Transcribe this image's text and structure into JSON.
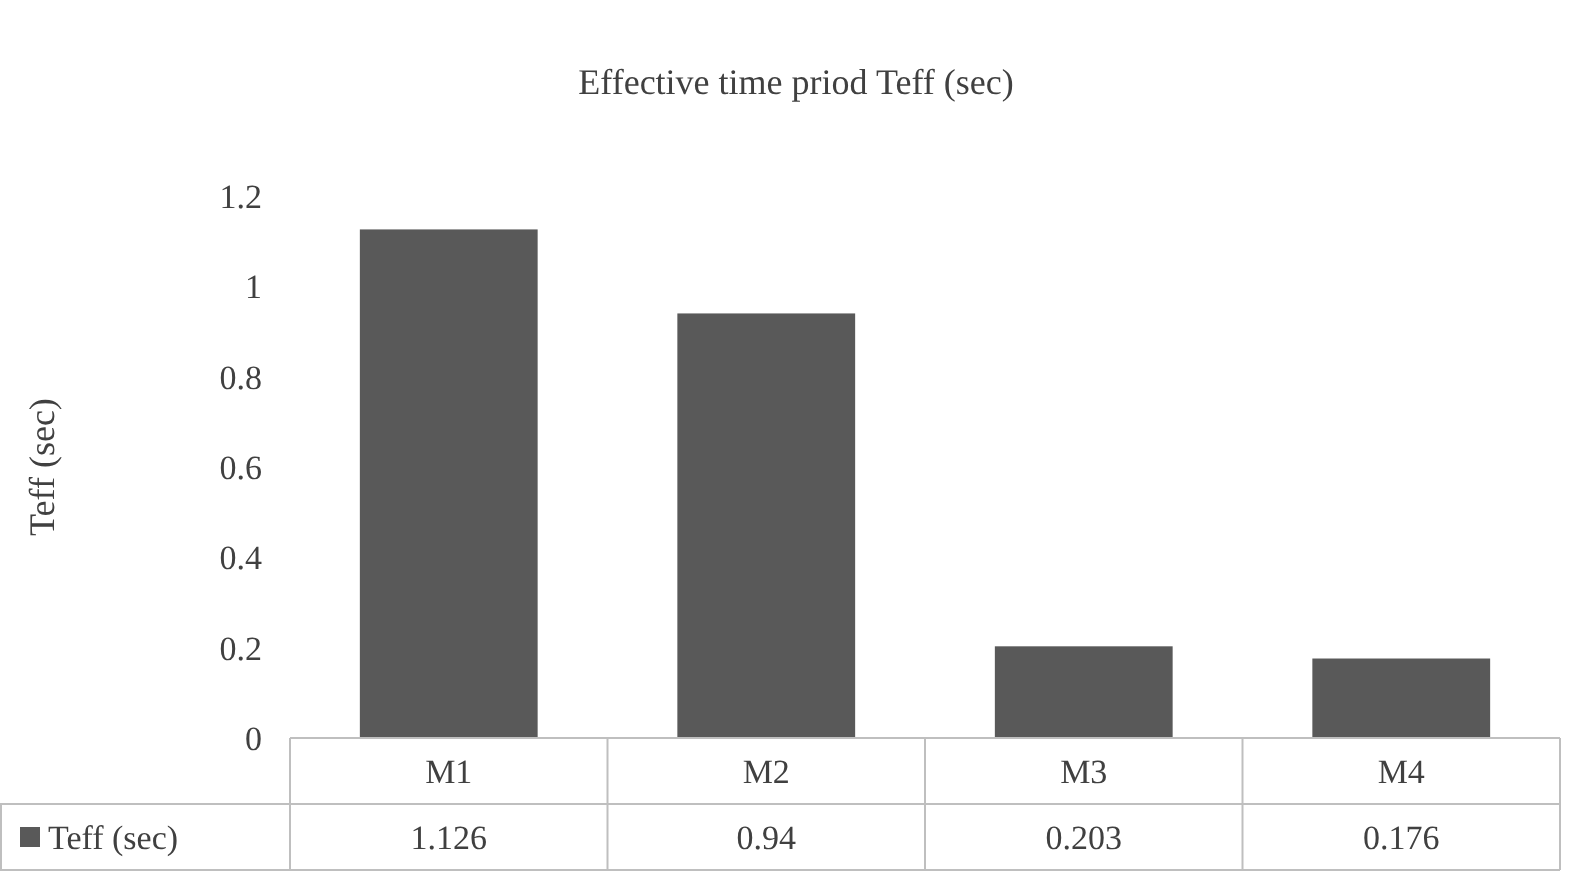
{
  "chart_data": {
    "type": "bar",
    "title": "Effective time priod Teff (sec)",
    "ylabel": "Teff (sec)",
    "categories": [
      "M1",
      "M2",
      "M3",
      "M4"
    ],
    "series": [
      {
        "name": "Teff (sec)",
        "color": "#595959",
        "values": [
          1.126,
          0.94,
          0.203,
          0.176
        ]
      }
    ],
    "ylim": [
      0,
      1.2
    ],
    "yticks": [
      0,
      0.2,
      0.4,
      0.6,
      0.8,
      1,
      1.2
    ],
    "data_labels": true,
    "legend": "bottom"
  }
}
